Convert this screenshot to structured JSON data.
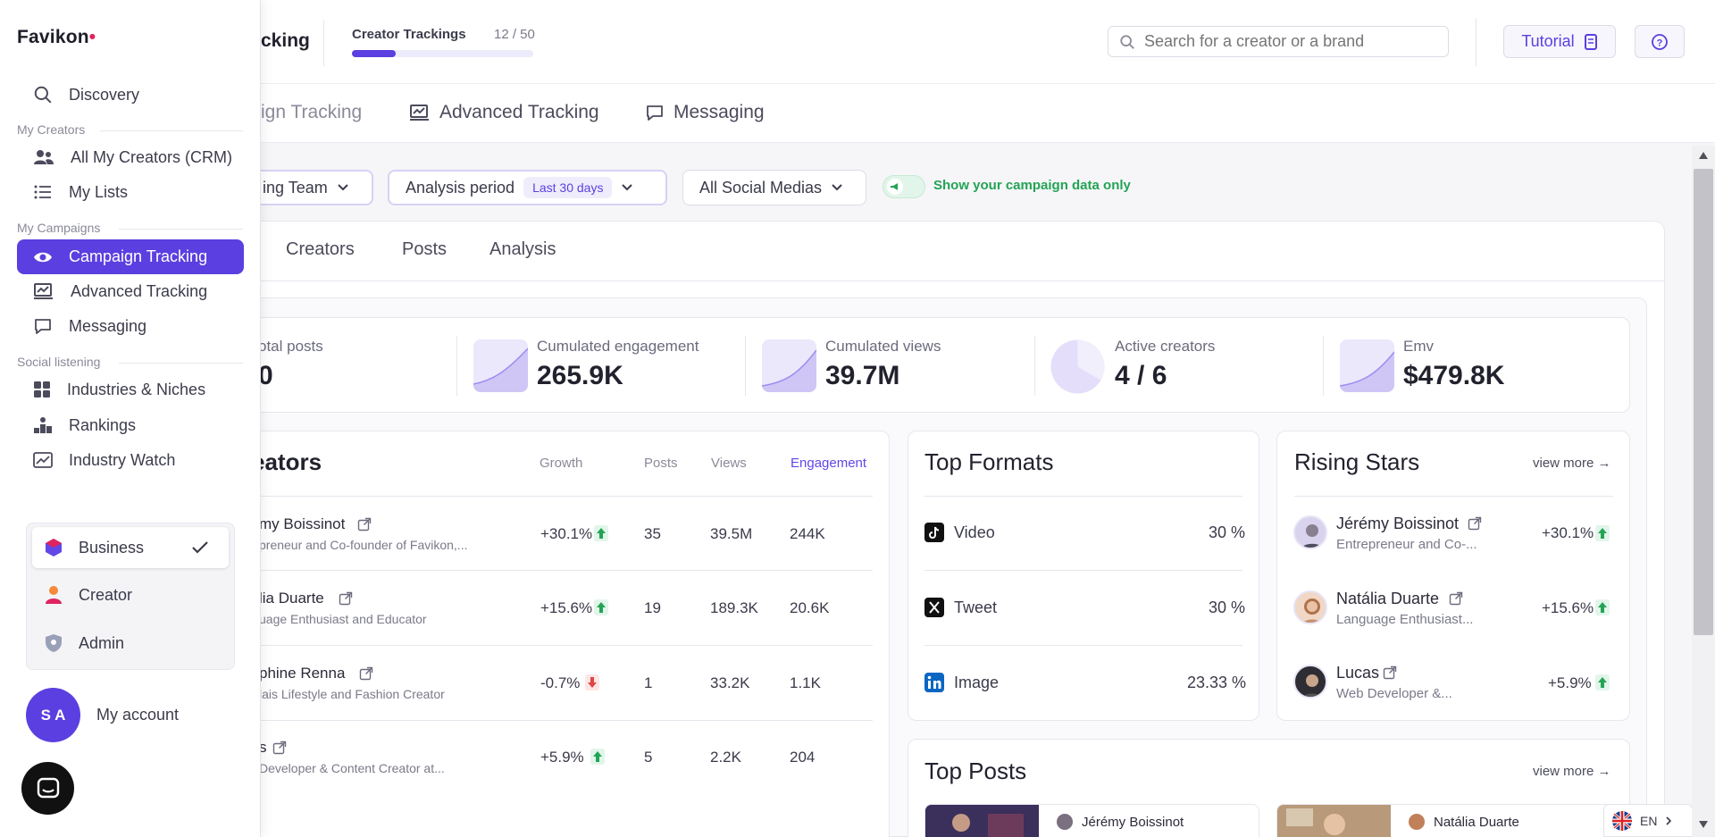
{
  "topbar": {
    "page_title_partial": "cking",
    "trackings_label": "Creator Trackings",
    "trackings_count": "12 / 50",
    "trackings_progress": 0.24,
    "search_placeholder": "Search for a creator or a brand",
    "tutorial_label": "Tutorial"
  },
  "nav": {
    "campaign_partial": "ign Tracking",
    "advanced": "Advanced Tracking",
    "messaging": "Messaging"
  },
  "filters": {
    "team_partial": "ing Team",
    "analysis_label": "Analysis period",
    "analysis_value": "Last 30 days",
    "social": "All Social Medias",
    "toggle_label": "Show your campaign data only"
  },
  "tabs": [
    "Creators",
    "Posts",
    "Analysis"
  ],
  "stats": [
    {
      "label": "otal posts",
      "value": "0"
    },
    {
      "label": "Cumulated engagement",
      "value": "265.9K"
    },
    {
      "label": "Cumulated views",
      "value": "39.7M"
    },
    {
      "label": "Active creators",
      "value": "4 / 6"
    },
    {
      "label": "Emv",
      "value": "$479.8K"
    }
  ],
  "creators": {
    "title_partial": "eators",
    "headers": {
      "growth": "Growth",
      "posts": "Posts",
      "views": "Views",
      "engagement": "Engagement"
    },
    "rows": [
      {
        "name": "my Boissinot",
        "sub": "preneur and Co-founder of Favikon,...",
        "growth": "+30.1%",
        "posts": "35",
        "views": "39.5M",
        "eng": "244K",
        "up": true
      },
      {
        "name": "lia Duarte",
        "sub": "uage Enthusiast and Educator",
        "growth": "+15.6%",
        "posts": "19",
        "views": "189.3K",
        "eng": "20.6K",
        "up": true
      },
      {
        "name": "phine Renna",
        "sub": "lais Lifestyle and Fashion Creator",
        "growth": "-0.7%",
        "posts": "1",
        "views": "33.2K",
        "eng": "1.1K",
        "up": false
      },
      {
        "name": "s",
        "sub": "Developer & Content Creator at...",
        "growth": "+5.9%",
        "posts": "5",
        "views": "2.2K",
        "eng": "204",
        "up": true
      }
    ]
  },
  "formats": {
    "title": "Top Formats",
    "rows": [
      {
        "label": "Video",
        "value": "30 %"
      },
      {
        "label": "Tweet",
        "value": "30 %"
      },
      {
        "label": "Image",
        "value": "23.33 %"
      }
    ]
  },
  "rising": {
    "title": "Rising Stars",
    "view_more": "view more →",
    "rows": [
      {
        "name": "Jérémy Boissinot",
        "sub": "Entrepreneur and Co-...",
        "growth": "+30.1%"
      },
      {
        "name": "Natália Duarte",
        "sub": "Language Enthusiast...",
        "growth": "+15.6%"
      },
      {
        "name": "Lucas",
        "sub": "Web Developer &...",
        "growth": "+5.9%"
      }
    ]
  },
  "top_posts": {
    "title": "Top Posts",
    "view_more": "view more →",
    "posts": [
      {
        "name": "Jérémy Boissinot"
      },
      {
        "name": "Natália Duarte"
      }
    ]
  },
  "sidebar": {
    "logo": "Favikon",
    "discovery": "Discovery",
    "head_creators": "My Creators",
    "crm": "All My Creators (CRM)",
    "lists": "My Lists",
    "head_campaigns": "My Campaigns",
    "campaign": "Campaign Tracking",
    "advanced": "Advanced Tracking",
    "messaging": "Messaging",
    "head_social": "Social listening",
    "industries": "Industries & Niches",
    "rankings": "Rankings",
    "watch": "Industry Watch",
    "roles": [
      "Business",
      "Creator",
      "Admin"
    ],
    "avatar": "S A",
    "account": "My account"
  },
  "lang": "EN",
  "colors": {
    "accent": "#6247e8",
    "green": "#23a455",
    "red": "#e04545"
  }
}
